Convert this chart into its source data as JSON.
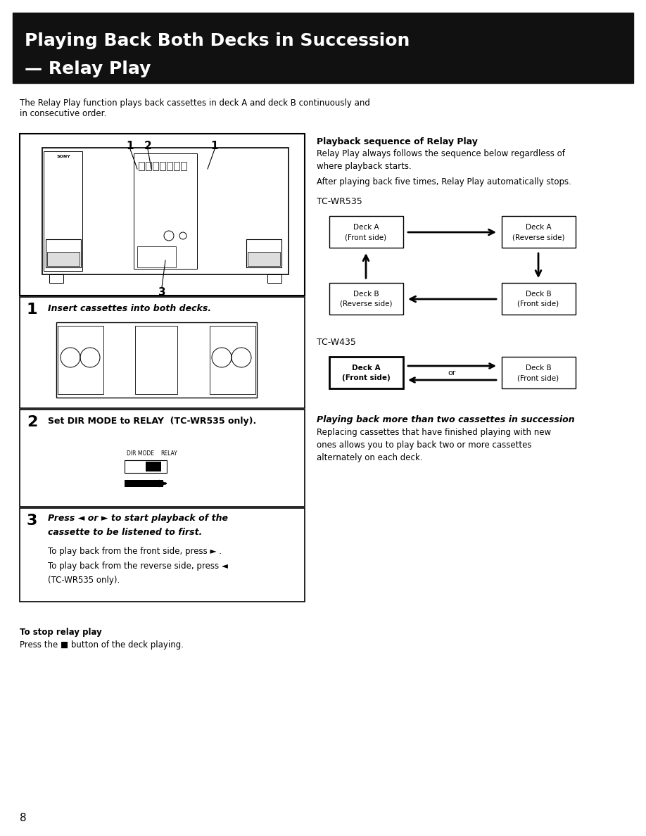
{
  "title_line1": "Playing Back Both Decks in Succession",
  "title_line2": "— Relay Play",
  "title_bg": "#111111",
  "title_fg": "#ffffff",
  "page_bg": "#ffffff",
  "page_number": "8",
  "intro_text": "The Relay Play function plays back cassettes in deck A and deck B continuously and\nin consecutive order.",
  "step1_label": "1",
  "step1_text": "Insert cassettes into both decks.",
  "step2_label": "2",
  "step2_text": "Set DIR MODE to RELAY  (TC-WR535 only).",
  "step3_label": "3",
  "step3_bold1": "Press ◄ or ► to start playback of the",
  "step3_bold2": "cassette to be listened to first.",
  "step3_sub1": "To play back from the front side, press ► .",
  "step3_sub2": "To play back from the reverse side, press ◄",
  "step3_sub3": "(TC-WR535 only).",
  "right_title": "Playback sequence of Relay Play",
  "right_para1": "Relay Play always follows the sequence below regardless of\nwhere playback starts.",
  "right_para2": "After playing back five times, Relay Play automatically stops.",
  "tc_wr535_label": "TC-WR535",
  "tc_w435_label": "TC-W435",
  "bottom_bold": "Playing back more than two cassettes in succession",
  "bottom_para": "Replacing cassettes that have finished playing with new\nones allows you to play back two or more cassettes\nalternately on each deck.",
  "stop_title": "To stop relay play",
  "stop_text": "Press the ■ button of the deck playing."
}
